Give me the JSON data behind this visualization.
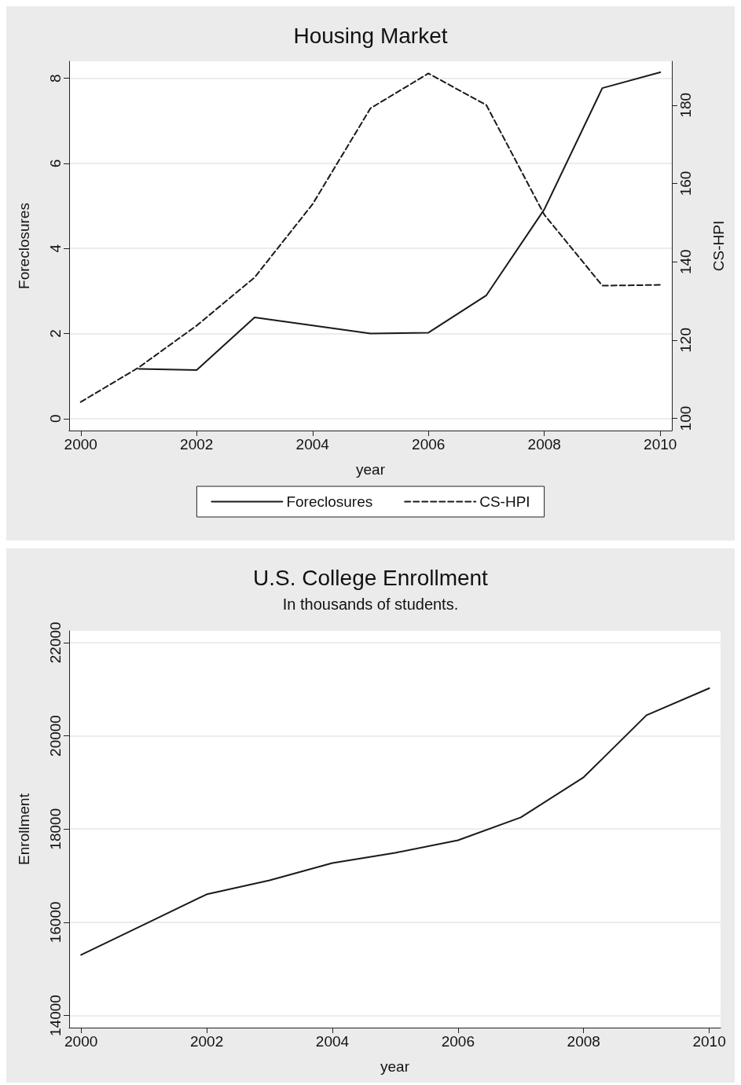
{
  "chart_data": [
    {
      "type": "line",
      "title": "Housing Market",
      "xlabel": "year",
      "ylabel": "Foreclosures",
      "y2label": "CS-HPI",
      "x": [
        2000,
        2001,
        2002,
        2003,
        2004,
        2005,
        2006,
        2007,
        2008,
        2009,
        2010
      ],
      "series": [
        {
          "name": "Foreclosures",
          "color": "#1a1a1a",
          "line_style": "solid",
          "values": [
            null,
            1.17,
            1.14,
            2.38,
            2.19,
            2.0,
            2.02,
            2.9,
            4.92,
            7.77,
            8.14
          ]
        },
        {
          "name": "CS-HPI",
          "color": "#1a1a1a",
          "line_style": "dashed",
          "axis": "y2",
          "values": [
            104.2,
            113,
            123.7,
            136,
            154.7,
            179.2,
            188.1,
            180,
            152,
            133.9,
            134.1
          ]
        }
      ],
      "xlim": [
        1999.8,
        2010.2
      ],
      "xticks": [
        2000,
        2002,
        2004,
        2006,
        2008,
        2010
      ],
      "ylim": [
        -0.28,
        8.4
      ],
      "yticks": [
        0,
        2,
        4,
        6,
        8
      ],
      "y2lim": [
        96.9,
        191.2
      ],
      "y2ticks": [
        100,
        120,
        140,
        160,
        180
      ],
      "grid": "y",
      "legend": "bottom",
      "marker": "none"
    },
    {
      "type": "line",
      "title": "U.S. College Enrollment",
      "subtitle": "In thousands of students.",
      "xlabel": "year",
      "ylabel": "Enrollment",
      "x": [
        2000,
        2001,
        2002,
        2003,
        2004,
        2005,
        2006,
        2007,
        2008,
        2009,
        2010
      ],
      "series": [
        {
          "color": "#1a1a1a",
          "line_style": "solid",
          "values": [
            15300,
            15950,
            16600,
            16900,
            17270,
            17490,
            17760,
            18250,
            19110,
            20440,
            21020
          ]
        }
      ],
      "xlim": [
        1999.81,
        2010.18
      ],
      "xticks": [
        2000,
        2002,
        2004,
        2006,
        2008,
        2010
      ],
      "ylim": [
        13740,
        22250
      ],
      "yticks": [
        14000,
        16000,
        18000,
        20000,
        22000
      ],
      "grid": "y",
      "legend": false,
      "marker": "none"
    }
  ]
}
